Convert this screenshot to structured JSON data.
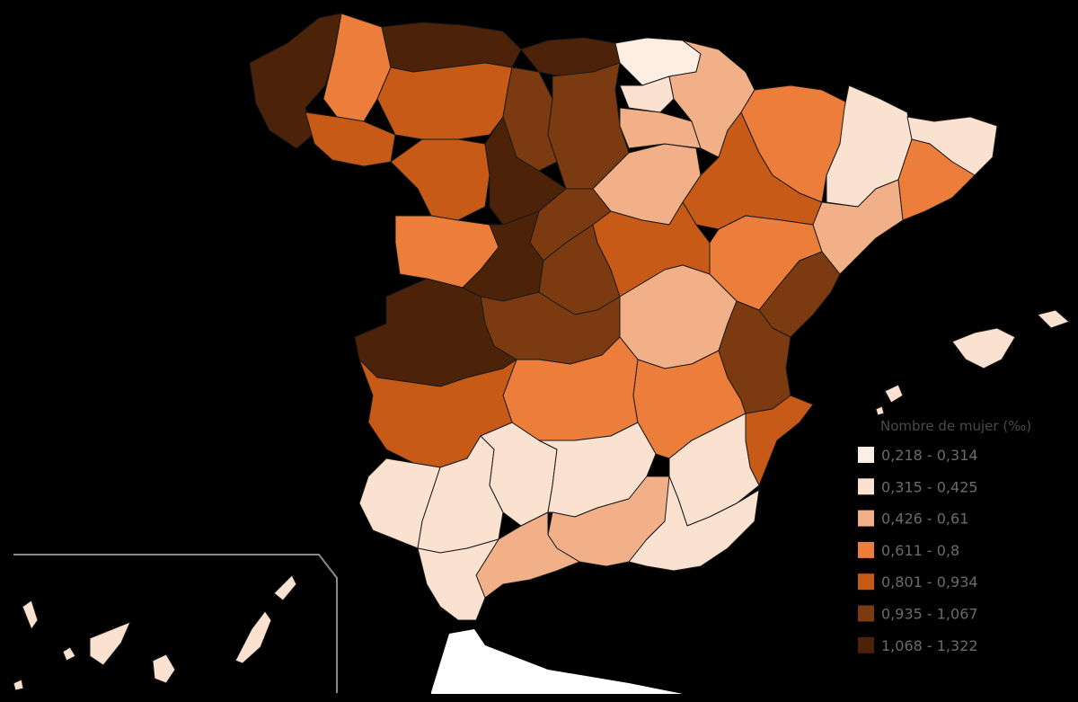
{
  "legend": {
    "title": "Nombre de mujer (‰)",
    "classes": [
      {
        "label": "0,218 - 0,314",
        "color": "#fdeee4"
      },
      {
        "label": "0,315 - 0,425",
        "color": "#fbe1d0"
      },
      {
        "label": "0,426 - 0,61",
        "color": "#f2b088"
      },
      {
        "label": "0,611 - 0,8",
        "color": "#ec7d3a"
      },
      {
        "label": "0,801 - 0,934",
        "color": "#c75a17"
      },
      {
        "label": "0,935 - 1,067",
        "color": "#7c3a10"
      },
      {
        "label": "1,068 - 1,322",
        "color": "#4c2209"
      }
    ]
  },
  "regions": [
    {
      "id": "a-coruna",
      "cls": 6
    },
    {
      "id": "lugo",
      "cls": 3
    },
    {
      "id": "ourense",
      "cls": 4
    },
    {
      "id": "asturias",
      "cls": 6
    },
    {
      "id": "cantabria",
      "cls": 6
    },
    {
      "id": "leon",
      "cls": 4
    },
    {
      "id": "zamora",
      "cls": 4
    },
    {
      "id": "palencia",
      "cls": 5
    },
    {
      "id": "burgos",
      "cls": 5
    },
    {
      "id": "valladolid",
      "cls": 6
    },
    {
      "id": "salamanca",
      "cls": 3
    },
    {
      "id": "segovia",
      "cls": 5
    },
    {
      "id": "avila",
      "cls": 6
    },
    {
      "id": "madrid",
      "cls": 5
    },
    {
      "id": "soria",
      "cls": 2
    },
    {
      "id": "la-rioja",
      "cls": 2
    },
    {
      "id": "alava",
      "cls": 1
    },
    {
      "id": "bizkaia",
      "cls": 0
    },
    {
      "id": "navarra",
      "cls": 2
    },
    {
      "id": "huesca",
      "cls": 3
    },
    {
      "id": "zaragoza",
      "cls": 4
    },
    {
      "id": "teruel",
      "cls": 3
    },
    {
      "id": "lleida",
      "cls": 1
    },
    {
      "id": "barcelona",
      "cls": 3
    },
    {
      "id": "girona",
      "cls": 1
    },
    {
      "id": "tarragona",
      "cls": 2
    },
    {
      "id": "guadalajara",
      "cls": 4
    },
    {
      "id": "cuenca",
      "cls": 2
    },
    {
      "id": "toledo",
      "cls": 5
    },
    {
      "id": "caceres",
      "cls": 6
    },
    {
      "id": "badajoz",
      "cls": 4
    },
    {
      "id": "ciudad-real",
      "cls": 3
    },
    {
      "id": "albacete",
      "cls": 3
    },
    {
      "id": "castellon",
      "cls": 5
    },
    {
      "id": "valencia",
      "cls": 5
    },
    {
      "id": "alicante",
      "cls": 4
    },
    {
      "id": "murcia",
      "cls": 1
    },
    {
      "id": "huelva",
      "cls": 1
    },
    {
      "id": "sevilla",
      "cls": 1
    },
    {
      "id": "cordoba",
      "cls": 1
    },
    {
      "id": "jaen",
      "cls": 1
    },
    {
      "id": "granada",
      "cls": 2
    },
    {
      "id": "almeria",
      "cls": 1
    },
    {
      "id": "malaga",
      "cls": 2
    },
    {
      "id": "cadiz",
      "cls": 1
    },
    {
      "id": "baleares",
      "cls": 1
    },
    {
      "id": "canarias",
      "cls": 1
    }
  ]
}
